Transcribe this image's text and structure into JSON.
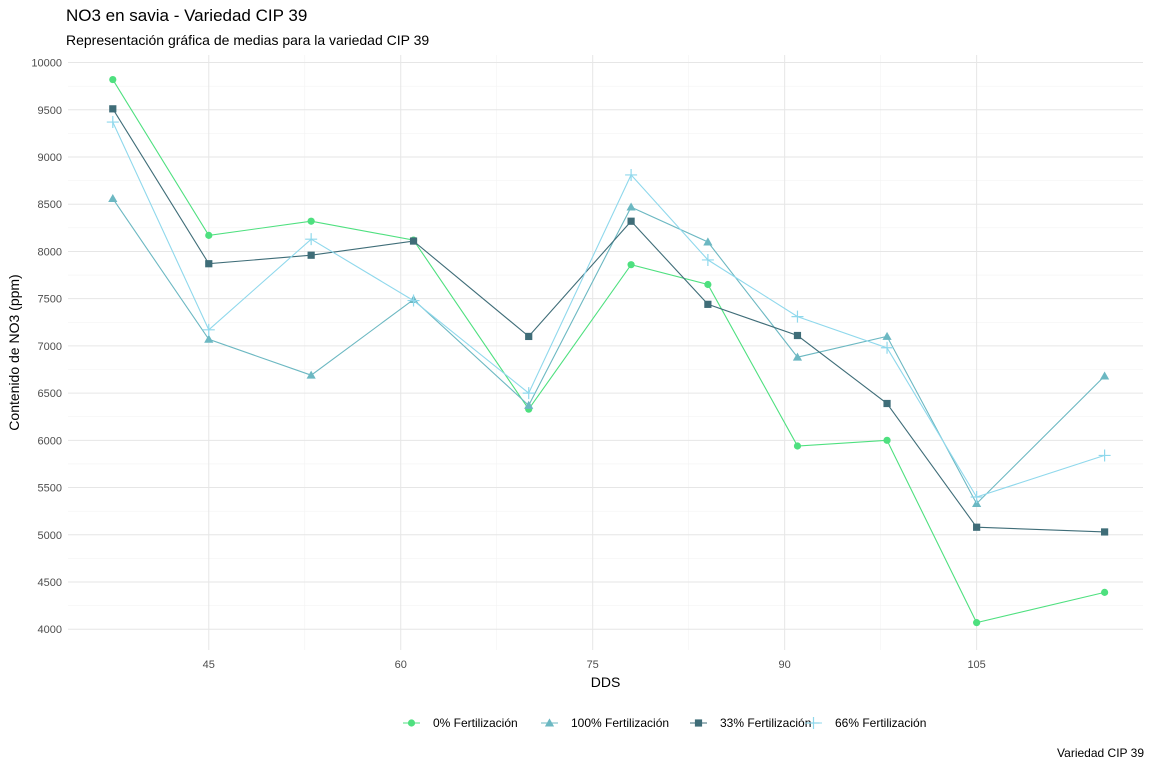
{
  "title": "NO3 en savia - Variedad CIP 39",
  "subtitle": "Representación gráfica de medias para la variedad CIP 39",
  "caption": "Variedad CIP 39",
  "chart_data": {
    "type": "line",
    "title": "NO3 en savia - Variedad CIP 39",
    "subtitle": "Representación gráfica de medias para la variedad CIP 39",
    "xlabel": "DDS",
    "ylabel": "Contenido de NO3 (ppm)",
    "xlim": [
      34,
      118
    ],
    "ylim": [
      3780,
      10080
    ],
    "x_ticks": [
      45,
      60,
      75,
      90,
      105
    ],
    "y_ticks": [
      4000,
      4500,
      5000,
      5500,
      6000,
      6500,
      7000,
      7500,
      8000,
      8500,
      9000,
      9500,
      10000
    ],
    "grid": true,
    "legend_position": "bottom",
    "x": [
      37.5,
      45,
      53,
      61,
      70,
      78,
      84,
      91,
      98,
      105,
      115
    ],
    "series": [
      {
        "name": "0% Fertilización",
        "color": "#4ee07f",
        "marker": "circle",
        "values": [
          9820,
          8170,
          8320,
          8120,
          6330,
          7860,
          7650,
          5940,
          6000,
          4070,
          4390
        ]
      },
      {
        "name": "100% Fertilización",
        "color": "#6cb8c2",
        "marker": "triangle",
        "values": [
          8560,
          7070,
          6690,
          7490,
          6370,
          8470,
          8100,
          6880,
          7100,
          5330,
          6680
        ]
      },
      {
        "name": "33% Fertilización",
        "color": "#3f6d78",
        "marker": "square",
        "values": [
          9510,
          7870,
          7960,
          8110,
          7100,
          8320,
          7440,
          7110,
          6390,
          5080,
          5030
        ]
      },
      {
        "name": "66% Fertilización",
        "color": "#8fd8ec",
        "marker": "plus",
        "values": [
          9370,
          7170,
          8130,
          7480,
          6500,
          8810,
          7910,
          7310,
          6980,
          5400,
          5840
        ]
      }
    ]
  }
}
